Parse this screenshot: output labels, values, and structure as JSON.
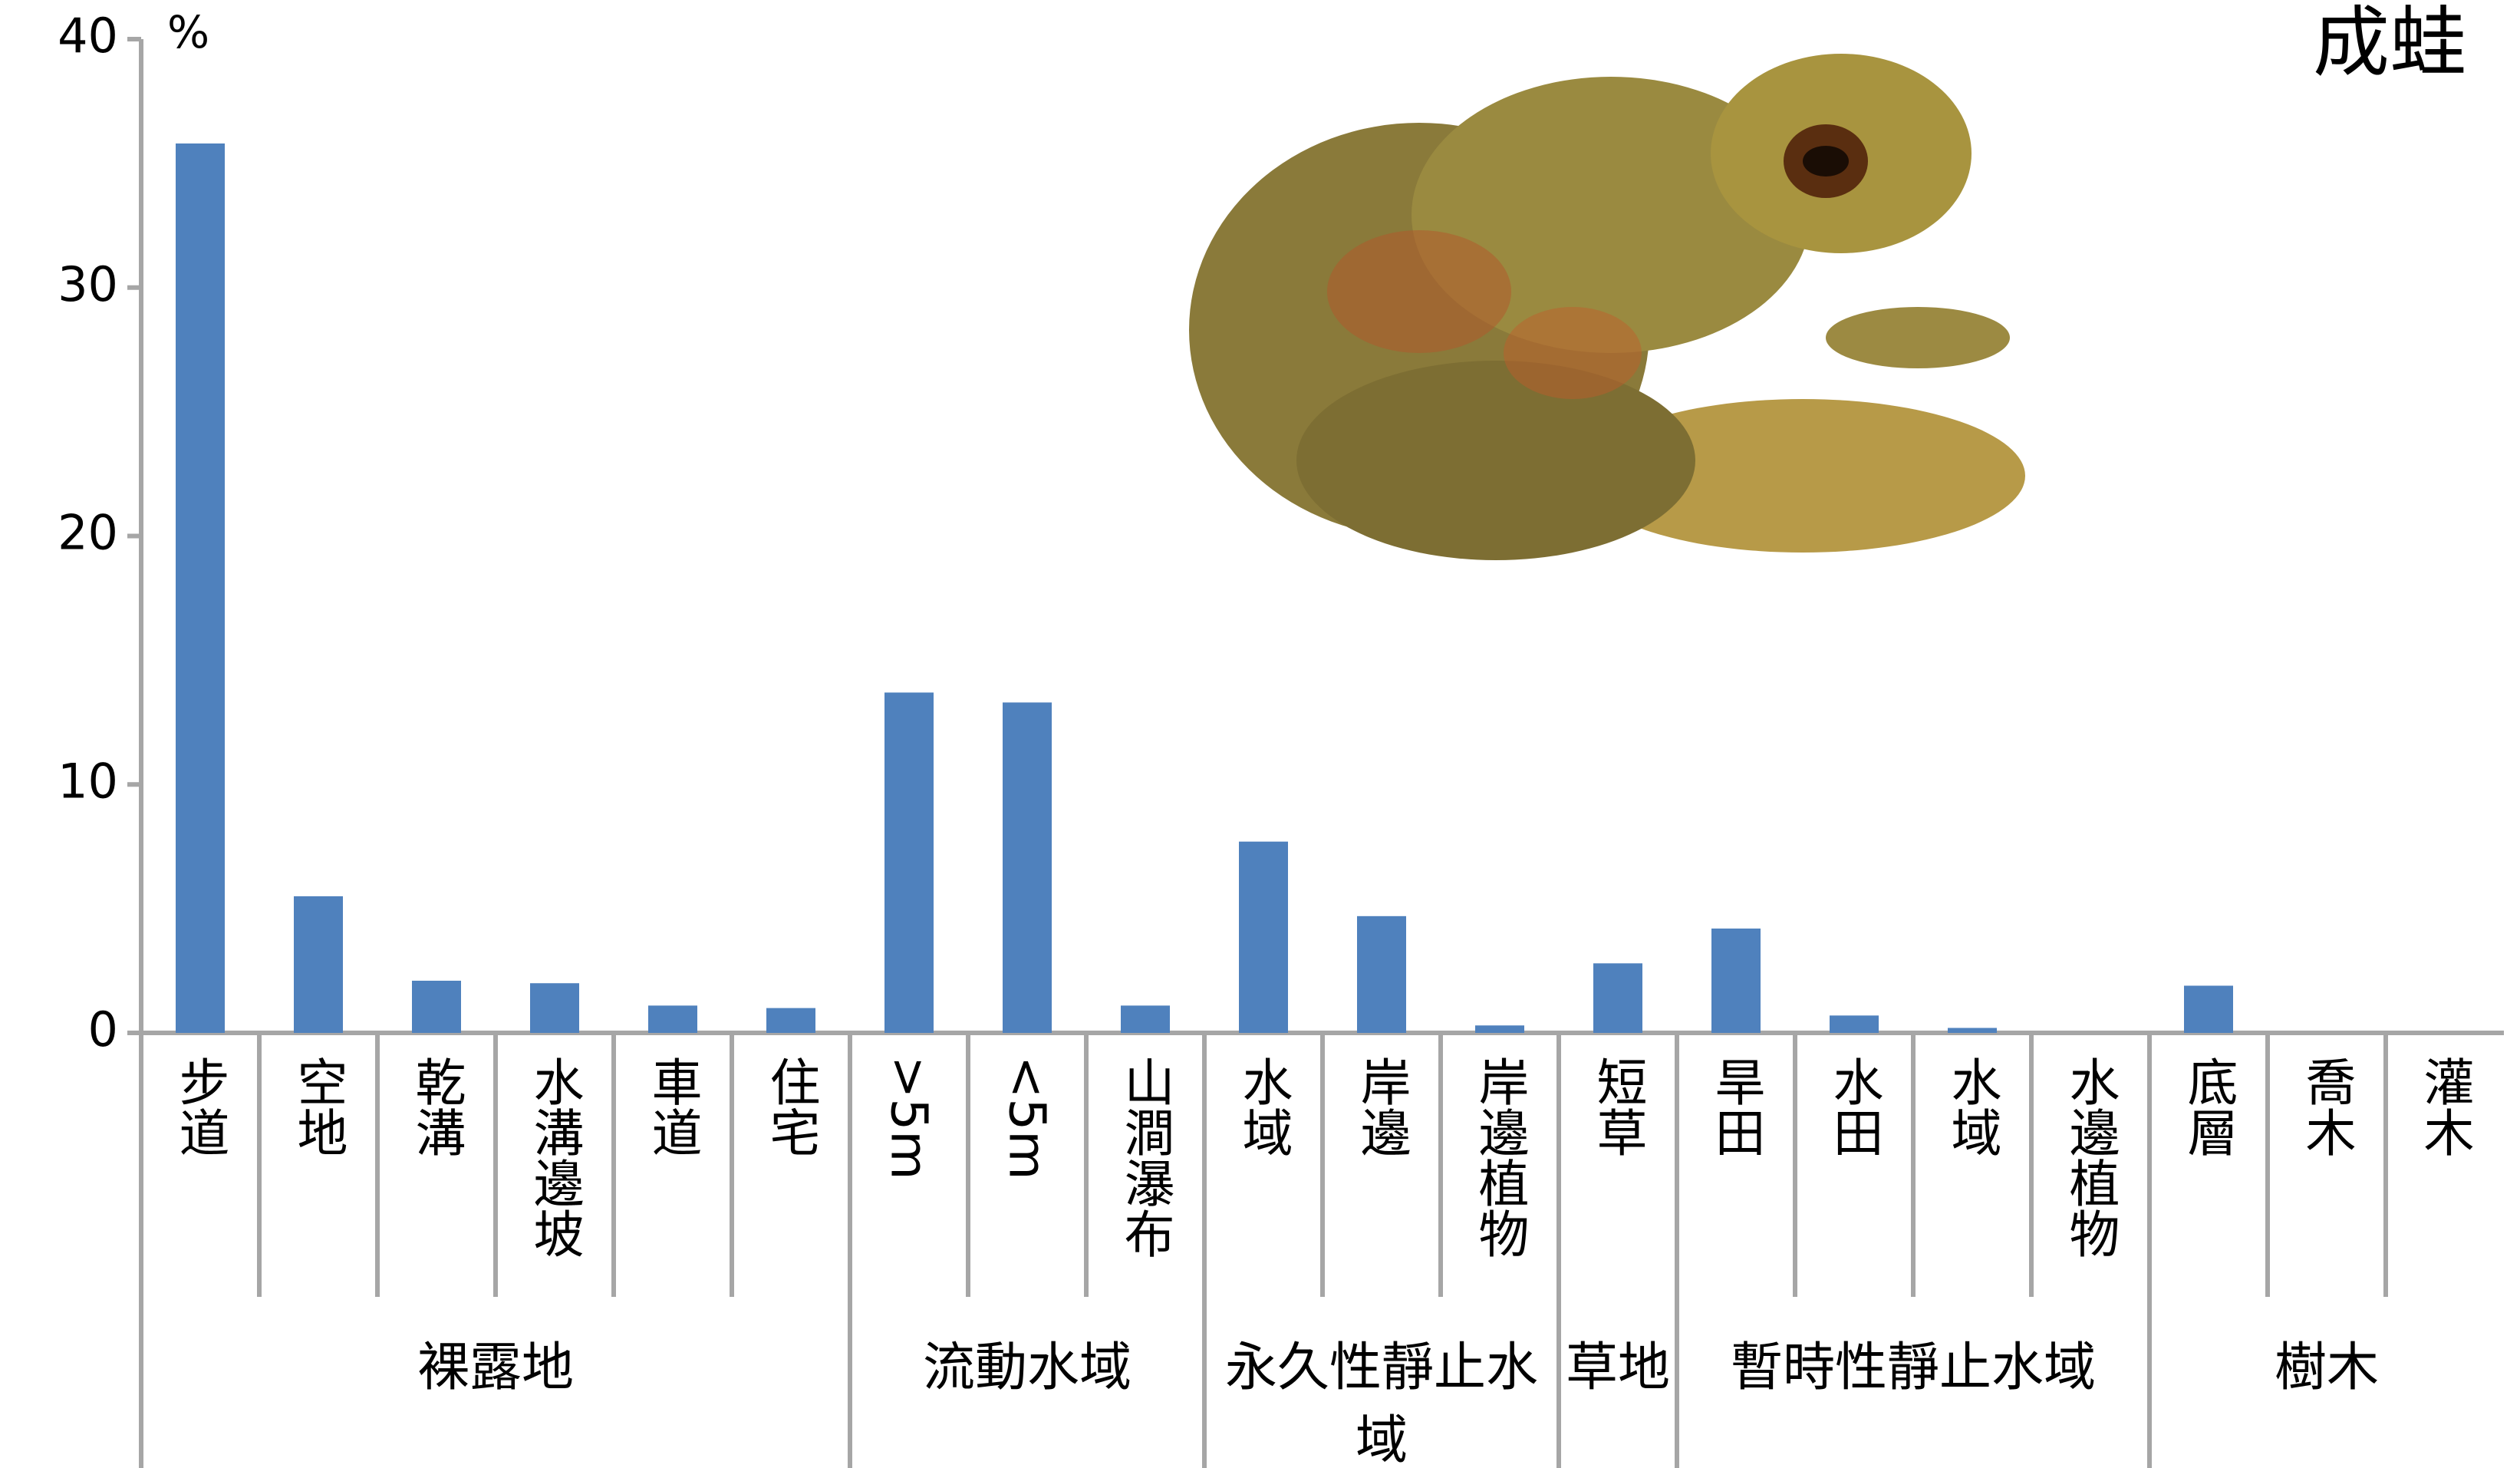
{
  "chart_data": {
    "type": "bar",
    "title": "成蛙",
    "y_label": "%",
    "color": "#4f81bd",
    "ylim": [
      0,
      40
    ],
    "yticks": [
      0,
      10,
      20,
      30,
      40
    ],
    "groups": [
      {
        "name": "裸露地",
        "categories": [
          "步道",
          "空地",
          "乾溝",
          "水溝邊坡",
          "車道",
          "住宅"
        ],
        "values": [
          35.8,
          5.5,
          2.1,
          2.0,
          1.1,
          1.0
        ]
      },
      {
        "name": "流動水域",
        "categories": [
          ">5m",
          "<5m",
          "山澗瀑布"
        ],
        "values": [
          13.7,
          13.3,
          1.1
        ]
      },
      {
        "name": "永久性靜止水域",
        "categories": [
          "水域",
          "岸邊",
          "岸邊植物"
        ],
        "values": [
          7.7,
          4.7,
          0.3
        ]
      },
      {
        "name": "草地",
        "categories": [
          "短草"
        ],
        "values": [
          2.8
        ]
      },
      {
        "name": "暫時性靜止水域",
        "categories": [
          "旱田",
          "水田",
          "水域",
          "水邊植物"
        ],
        "values": [
          4.2,
          0.7,
          0.2,
          0
        ]
      },
      {
        "name": "樹木",
        "categories": [
          "底層",
          "喬木",
          "灌木"
        ],
        "values": [
          1.9,
          0,
          0
        ]
      }
    ]
  }
}
